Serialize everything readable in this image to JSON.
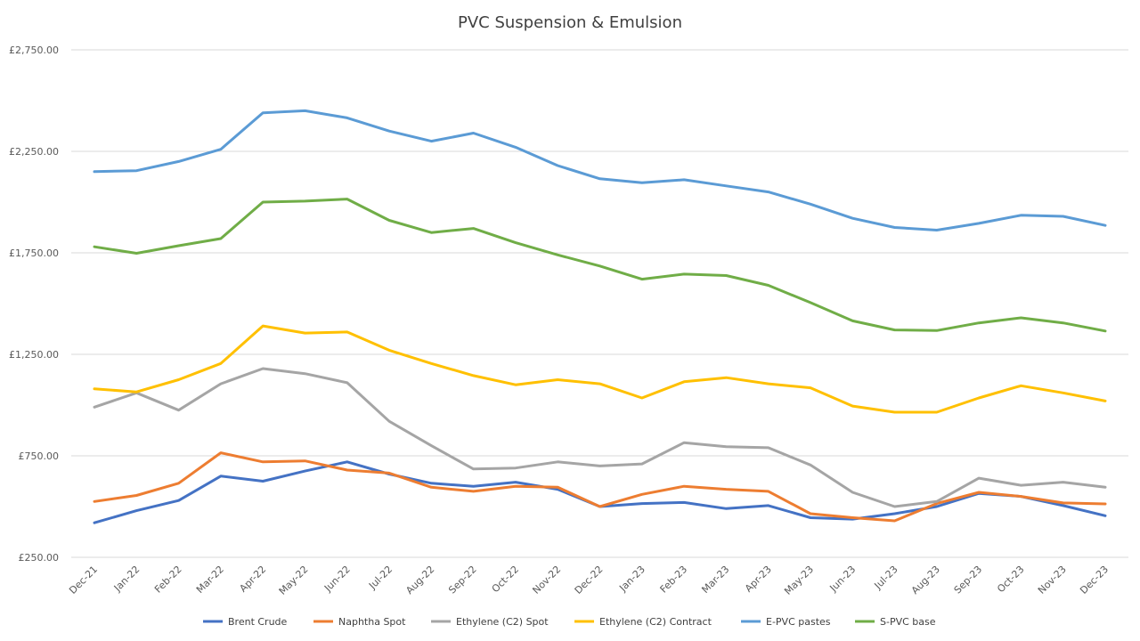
{
  "chart_data": {
    "type": "line",
    "title": "PVC Suspension & Emulsion",
    "xlabel": "",
    "ylabel": "",
    "ylim": [
      250,
      2750
    ],
    "yticks": [
      250,
      750,
      1250,
      1750,
      2250,
      2750
    ],
    "ytick_labels": [
      "£250.00",
      "£750.00",
      "£1,250.00",
      "£1,750.00",
      "£2,250.00",
      "£2,750.00"
    ],
    "grid": true,
    "legend_position": "bottom",
    "categories": [
      "Dec-21",
      "Jan-22",
      "Feb-22",
      "Mar-22",
      "Apr-22",
      "May-22",
      "Jun-22",
      "Jul-22",
      "Aug-22",
      "Sep-22",
      "Oct-22",
      "Nov-22",
      "Dec-22",
      "Jan-23",
      "Feb-23",
      "Mar-23",
      "Apr-23",
      "May-23",
      "Jun-23",
      "Jul-23",
      "Aug-23",
      "Sep-23",
      "Oct-23",
      "Nov-23",
      "Dec-23"
    ],
    "series": [
      {
        "name": "Brent Crude",
        "color": "#4472C4",
        "values": [
          420,
          480,
          530,
          650,
          625,
          675,
          720,
          660,
          615,
          600,
          620,
          585,
          500,
          515,
          520,
          490,
          505,
          445,
          438,
          465,
          500,
          565,
          550,
          505,
          455
        ]
      },
      {
        "name": "Naphtha Spot",
        "color": "#ED7D31",
        "values": [
          525,
          555,
          615,
          765,
          720,
          725,
          680,
          665,
          595,
          575,
          600,
          595,
          500,
          560,
          600,
          585,
          575,
          465,
          445,
          430,
          515,
          570,
          550,
          518,
          513
        ]
      },
      {
        "name": "Ethylene (C2) Spot",
        "color": "#A5A5A5",
        "values": [
          990,
          1060,
          975,
          1105,
          1180,
          1155,
          1110,
          920,
          800,
          685,
          690,
          720,
          700,
          710,
          815,
          795,
          790,
          705,
          570,
          500,
          525,
          640,
          605,
          620,
          595
        ]
      },
      {
        "name": "Ethylene (C2) Contract",
        "color": "#FFC000",
        "values": [
          1080,
          1065,
          1125,
          1205,
          1390,
          1355,
          1360,
          1270,
          1205,
          1145,
          1100,
          1125,
          1105,
          1035,
          1115,
          1135,
          1105,
          1085,
          995,
          965,
          965,
          1035,
          1095,
          1060,
          1020
        ]
      },
      {
        "name": "E-PVC pastes",
        "color": "#5B9BD5",
        "values": [
          2150,
          2155,
          2200,
          2260,
          2440,
          2450,
          2415,
          2350,
          2300,
          2340,
          2270,
          2180,
          2115,
          2095,
          2110,
          2080,
          2050,
          1990,
          1920,
          1875,
          1862,
          1895,
          1935,
          1930,
          1885
        ]
      },
      {
        "name": "S-PVC base",
        "color": "#70AD47",
        "values": [
          1780,
          1748,
          1785,
          1820,
          2000,
          2005,
          2015,
          1910,
          1850,
          1870,
          1800,
          1740,
          1685,
          1620,
          1645,
          1638,
          1590,
          1505,
          1415,
          1370,
          1367,
          1405,
          1430,
          1405,
          1365
        ]
      }
    ]
  }
}
